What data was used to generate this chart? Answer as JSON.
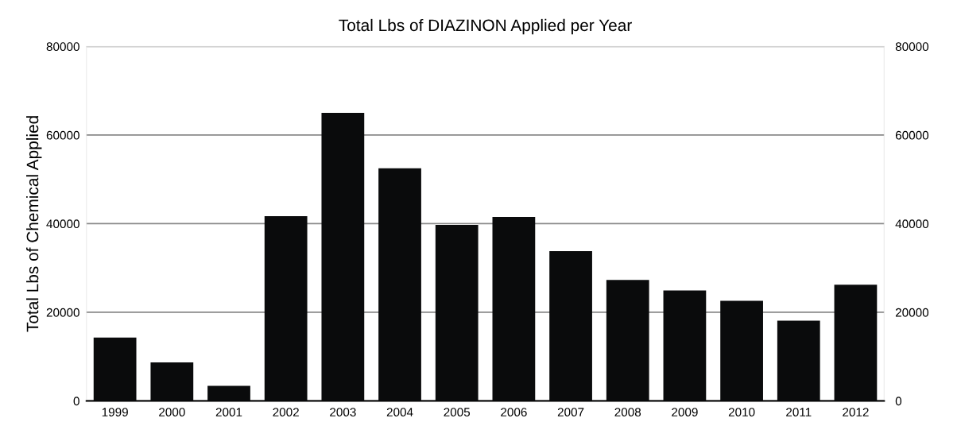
{
  "chart_data": {
    "type": "bar",
    "title": "Total Lbs of DIAZINON Applied per Year",
    "ylabel": "Total Lbs of Chemical Applied",
    "categories": [
      "1999",
      "2000",
      "2001",
      "2002",
      "2003",
      "2004",
      "2005",
      "2006",
      "2007",
      "2008",
      "2009",
      "2010",
      "2011",
      "2012"
    ],
    "values": [
      14300,
      8700,
      3400,
      41700,
      65000,
      52500,
      39700,
      41500,
      33800,
      27300,
      24900,
      22600,
      18100,
      26200
    ],
    "color": "#0a0b0c",
    "ylim": [
      0,
      80000
    ],
    "yticks": [
      0,
      20000,
      40000,
      60000,
      80000
    ],
    "y2lim": [
      0,
      80000
    ],
    "y2ticks": [
      0,
      20000,
      40000,
      60000,
      80000
    ],
    "grid": "y"
  }
}
